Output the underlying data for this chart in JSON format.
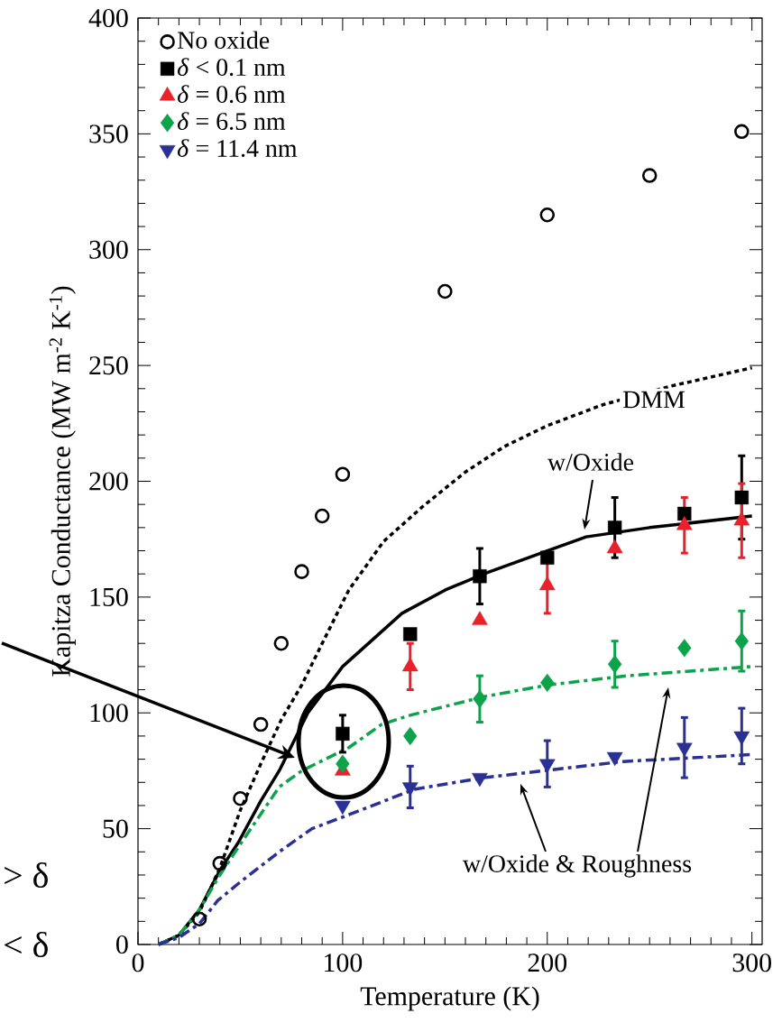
{
  "chart_data": {
    "type": "scatter",
    "xlabel": "Temperature (K)",
    "ylabel": "Kapitza Conductance (MW m$^{-2}$ K$^{-1}$)",
    "xlim": [
      0,
      305
    ],
    "ylim": [
      0,
      400
    ],
    "xticks": [
      0,
      100,
      200,
      300
    ],
    "yticks": [
      0,
      50,
      100,
      150,
      200,
      250,
      300,
      350,
      400
    ],
    "legend": "top left",
    "series": [
      {
        "name": "No oxide",
        "marker": "circle open",
        "color": "#000000",
        "x": [
          30,
          40,
          50,
          60,
          70,
          80,
          90,
          100,
          150,
          200,
          250,
          295
        ],
        "values": [
          11,
          35,
          63,
          95,
          130,
          161,
          185,
          203,
          282,
          315,
          332,
          351
        ]
      },
      {
        "name": "*δ* < 0.1 nm",
        "marker": "square",
        "color": "#000000",
        "x": [
          100,
          133,
          167,
          200,
          233,
          267,
          295
        ],
        "values": [
          91,
          134,
          159,
          167,
          180,
          186,
          193
        ],
        "errors": [
          8,
          null,
          12,
          null,
          13,
          null,
          18
        ]
      },
      {
        "name": "*δ* = 0.6 nm",
        "marker": "triangle",
        "color": "#e8212a",
        "x": [
          100,
          133,
          167,
          200,
          233,
          267,
          295
        ],
        "values": [
          75,
          120,
          140,
          155,
          171,
          181,
          183
        ],
        "errors": [
          null,
          10,
          null,
          12,
          null,
          12,
          16
        ]
      },
      {
        "name": "*δ* = 6.5 nm",
        "marker": "diamond",
        "color": "#0ca34b",
        "x": [
          100,
          133,
          167,
          200,
          233,
          267,
          295
        ],
        "values": [
          78,
          90,
          106,
          113,
          121,
          128,
          131
        ],
        "errors": [
          null,
          null,
          10,
          null,
          10,
          null,
          13
        ]
      },
      {
        "name": "*δ* = 11.4 nm",
        "marker": "triangle down",
        "color": "#2a3192",
        "x": [
          100,
          133,
          167,
          200,
          233,
          267,
          295
        ],
        "values": [
          60,
          68,
          72,
          78,
          81,
          85,
          90
        ],
        "errors": [
          null,
          9,
          null,
          10,
          null,
          13,
          12
        ]
      },
      {
        "type": "line",
        "line_style": "dotted",
        "color": "#000000",
        "x": [
          10,
          20,
          30,
          40,
          50,
          60,
          70,
          80,
          90,
          103,
          120,
          139,
          160,
          179,
          200,
          227,
          260,
          285,
          300
        ],
        "values": [
          0,
          4,
          14,
          33,
          58,
          78,
          97,
          112,
          130,
          153,
          174,
          189,
          204,
          215,
          224,
          233,
          241,
          246,
          249
        ]
      },
      {
        "type": "line",
        "line_style": "solid",
        "color": "#000000",
        "x": [
          10,
          20,
          30,
          40,
          49,
          60,
          69,
          83,
          100,
          129,
          150,
          169,
          200,
          219,
          250,
          300
        ],
        "values": [
          0,
          4,
          15,
          32,
          44,
          62,
          75,
          100,
          120,
          143,
          153,
          160,
          170,
          176,
          180,
          185
        ]
      },
      {
        "type": "line",
        "line_style": "dashdot",
        "color": "#0ca34b",
        "x": [
          10,
          20,
          30,
          40,
          49,
          69,
          80,
          103,
          119,
          133,
          169,
          200,
          239,
          300
        ],
        "values": [
          0,
          4,
          15,
          30,
          42,
          68,
          75,
          85,
          95,
          99,
          107,
          112,
          116,
          120
        ]
      },
      {
        "type": "line",
        "line_style": "dashdot",
        "color": "#2a3192",
        "x": [
          10,
          20,
          30,
          39,
          50,
          69,
          85,
          103,
          135,
          169,
          237,
          300
        ],
        "values": [
          0,
          3,
          9,
          19,
          27,
          40,
          50,
          56,
          67,
          72,
          79,
          82
        ]
      }
    ],
    "annotations": [
      "DMM",
      "w/Oxide",
      "w/Oxide & Roughness",
      "> δ",
      "< δ"
    ]
  }
}
